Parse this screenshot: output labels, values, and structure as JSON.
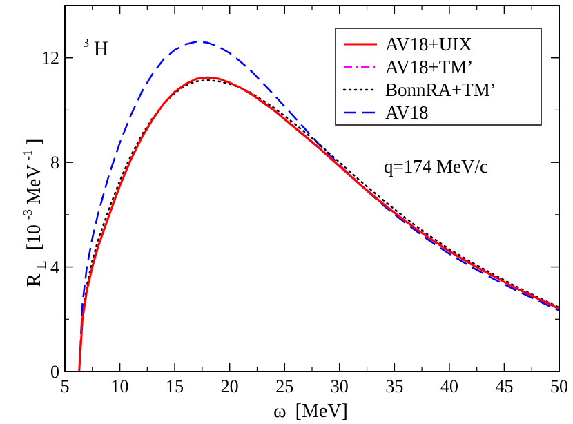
{
  "chart_data": {
    "type": "line",
    "xlabel_symbol": "ω",
    "xlabel_unit": "[MeV]",
    "ylabel_main": "R",
    "ylabel_sub": "L",
    "ylabel_unit_open": "[10",
    "ylabel_unit_exp1": "-3",
    "ylabel_unit_mid": "MeV",
    "ylabel_unit_exp2": "-1",
    "ylabel_unit_close": "]",
    "xlim": [
      5,
      50
    ],
    "ylim": [
      0,
      14
    ],
    "xticks": [
      5,
      10,
      15,
      20,
      25,
      30,
      35,
      40,
      45,
      50
    ],
    "yticks": [
      0,
      4,
      8,
      12
    ],
    "grid": false,
    "legend_position": "top-right",
    "annotations": {
      "nucleus_mass": "3",
      "nucleus_symbol": "H",
      "momentum": "q=174 MeV/c"
    },
    "series": [
      {
        "name": "AV18+UIX",
        "color": "#ff0000",
        "style": "solid",
        "x": [
          6.3,
          6.6,
          7,
          7.5,
          8,
          9,
          10,
          11,
          12,
          13,
          14,
          15,
          16,
          17,
          18,
          19,
          20,
          21,
          22,
          24,
          26,
          28,
          30,
          32,
          34,
          36,
          38,
          40,
          42,
          44,
          46,
          48,
          50
        ],
        "y": [
          0.0,
          2.0,
          3.1,
          4.0,
          4.75,
          5.95,
          7.1,
          8.1,
          8.95,
          9.65,
          10.25,
          10.7,
          11.0,
          11.2,
          11.25,
          11.2,
          11.05,
          10.85,
          10.6,
          10.0,
          9.3,
          8.6,
          7.85,
          7.1,
          6.4,
          5.75,
          5.15,
          4.6,
          4.1,
          3.65,
          3.2,
          2.8,
          2.4
        ]
      },
      {
        "name": "AV18+TM’",
        "color": "#ff00ff",
        "style": "dash-dot",
        "x": [
          6.3,
          6.6,
          7,
          7.5,
          8,
          9,
          10,
          11,
          12,
          13,
          14,
          15,
          16,
          17,
          18,
          19,
          20,
          21,
          22,
          24,
          26,
          28,
          30,
          32,
          34,
          36,
          38,
          40,
          42,
          44,
          46,
          48,
          50
        ],
        "y": [
          0.0,
          2.0,
          3.1,
          4.0,
          4.75,
          5.95,
          7.1,
          8.1,
          8.95,
          9.65,
          10.25,
          10.7,
          11.0,
          11.2,
          11.25,
          11.2,
          11.05,
          10.85,
          10.62,
          10.02,
          9.33,
          8.62,
          7.88,
          7.12,
          6.42,
          5.77,
          5.17,
          4.62,
          4.12,
          3.67,
          3.22,
          2.82,
          2.43
        ]
      },
      {
        "name": "BonnRA+TM’",
        "color": "#000000",
        "style": "dotted",
        "x": [
          6.3,
          6.6,
          7,
          7.5,
          8,
          9,
          10,
          11,
          12,
          13,
          14,
          15,
          16,
          17,
          18,
          19,
          20,
          21,
          22,
          24,
          26,
          28,
          30,
          32,
          34,
          36,
          38,
          40,
          42,
          44,
          46,
          48,
          50
        ],
        "y": [
          0.0,
          2.1,
          3.3,
          4.25,
          5.0,
          6.2,
          7.3,
          8.25,
          9.05,
          9.7,
          10.25,
          10.65,
          10.95,
          11.1,
          11.15,
          11.1,
          11.0,
          10.85,
          10.65,
          10.1,
          9.45,
          8.75,
          8.0,
          7.25,
          6.55,
          5.87,
          5.25,
          4.68,
          4.18,
          3.72,
          3.27,
          2.85,
          2.45
        ]
      },
      {
        "name": "AV18",
        "color": "#0000ff",
        "style": "dashed",
        "x": [
          6.3,
          6.6,
          7,
          7.5,
          8,
          9,
          10,
          11,
          12,
          13,
          14,
          15,
          16,
          17,
          18,
          19,
          20,
          21,
          22,
          24,
          26,
          28,
          30,
          32,
          34,
          36,
          38,
          40,
          42,
          44,
          46,
          48,
          50
        ],
        "y": [
          0.0,
          2.6,
          4.0,
          5.1,
          6.0,
          7.5,
          8.75,
          9.8,
          10.7,
          11.4,
          11.95,
          12.3,
          12.52,
          12.62,
          12.58,
          12.42,
          12.18,
          11.85,
          11.48,
          10.6,
          9.68,
          8.75,
          7.9,
          7.1,
          6.35,
          5.68,
          5.06,
          4.5,
          4.0,
          3.55,
          3.12,
          2.72,
          2.33
        ]
      }
    ]
  }
}
